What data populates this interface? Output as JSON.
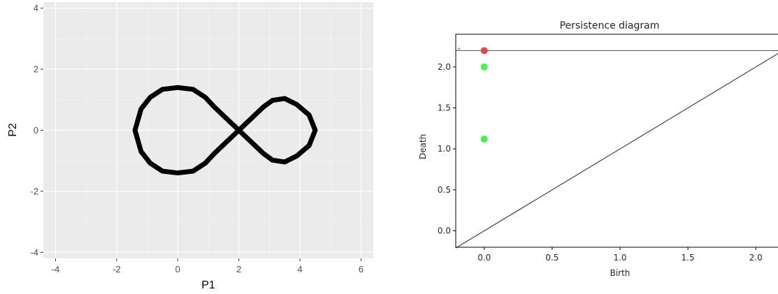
{
  "chart_data": [
    {
      "type": "line",
      "xlabel": "P1",
      "ylabel": "P2",
      "xlim": [
        -4.4,
        6.4
      ],
      "ylim": [
        -4.2,
        4.2
      ],
      "x_ticks": [
        -4,
        -2,
        0,
        2,
        4,
        6
      ],
      "y_ticks": [
        -4,
        -2,
        0,
        2,
        4
      ],
      "grid": true,
      "series": [
        {
          "description_shape": "figure-eight curve",
          "color": "#000000",
          "x": [
            2.0,
            1.6,
            1.2,
            0.9,
            0.5,
            0.0,
            -0.5,
            -0.9,
            -1.2,
            -1.4,
            -1.2,
            -0.9,
            -0.5,
            0.0,
            0.5,
            0.9,
            1.2,
            1.6,
            2.0,
            2.4,
            2.8,
            3.1,
            3.5,
            3.9,
            4.3,
            4.5,
            4.3,
            3.9,
            3.5,
            3.1,
            2.8,
            2.4,
            2.0
          ],
          "y": [
            0.0,
            0.38,
            0.76,
            1.08,
            1.34,
            1.4,
            1.34,
            1.08,
            0.7,
            0.0,
            -0.7,
            -1.08,
            -1.34,
            -1.4,
            -1.34,
            -1.08,
            -0.76,
            -0.38,
            0.0,
            -0.38,
            -0.76,
            -0.98,
            -1.04,
            -0.84,
            -0.5,
            0.0,
            0.5,
            0.84,
            1.04,
            0.98,
            0.76,
            0.38,
            0.0
          ]
        }
      ]
    },
    {
      "type": "scatter",
      "title": "Persistence diagram",
      "xlabel": "Birth",
      "ylabel": "Death",
      "xlim": [
        -0.21,
        2.21
      ],
      "ylim": [
        -0.2,
        2.4
      ],
      "x_ticks": [
        "0.0",
        "0.5",
        "1.0",
        "1.5",
        "2.0"
      ],
      "y_ticks": [
        "0.0",
        "0.5",
        "1.0",
        "1.5",
        "2.0"
      ],
      "infinity_label": "∞",
      "infinity_level": 2.2,
      "diagonal": true,
      "series": [
        {
          "color": "#e8464b",
          "points": [
            [
              0.0,
              2.2
            ]
          ]
        },
        {
          "color": "#4cf04c",
          "points": [
            [
              0.0,
              2.0
            ],
            [
              0.0,
              1.12
            ]
          ]
        }
      ]
    }
  ]
}
